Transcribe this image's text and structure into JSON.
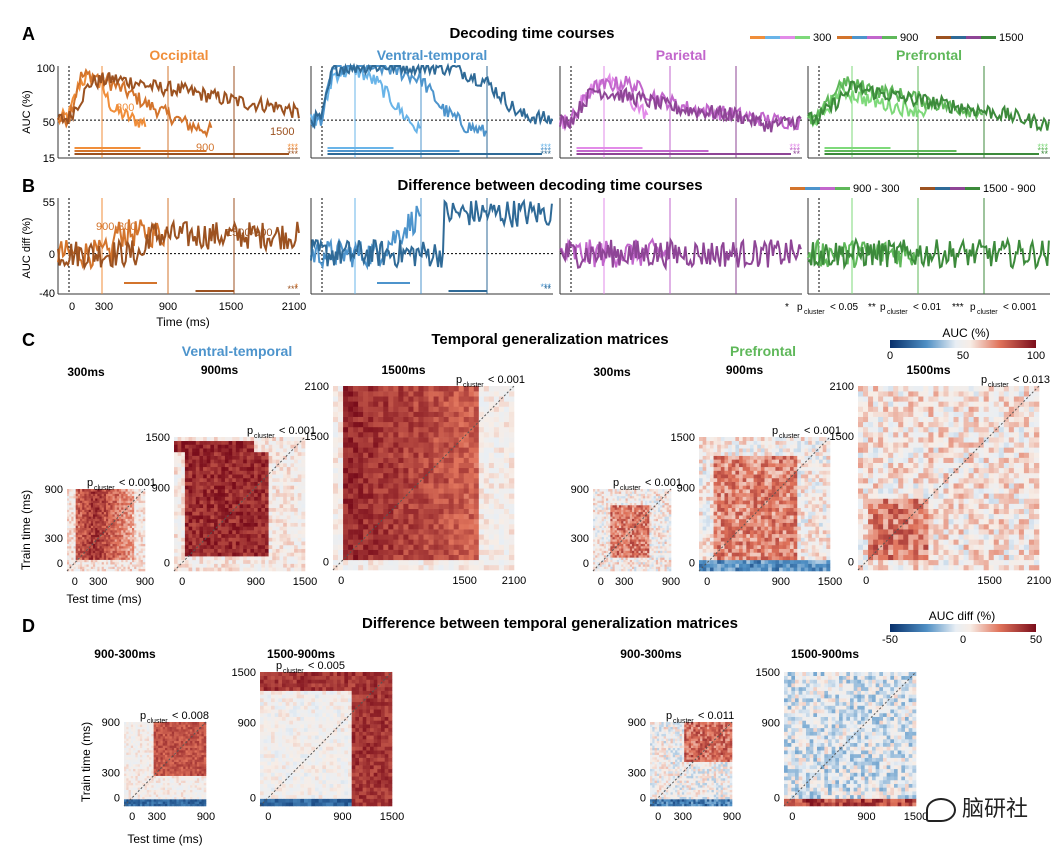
{
  "panels": {
    "A": {
      "letter": "A",
      "title": "Decoding time courses",
      "ylabel": "AUC (%)",
      "yticks": [
        "100",
        "50",
        "15"
      ],
      "legend": [
        {
          "label": "300",
          "colors": [
            "#f08e3a",
            "#69b4e8",
            "#e28be8",
            "#7ed97a"
          ]
        },
        {
          "label": "900",
          "colors": [
            "#d3742c",
            "#4d94cc",
            "#c266cc",
            "#5fb85a"
          ]
        },
        {
          "label": "1500",
          "colors": [
            "#9c5220",
            "#2f6a97",
            "#8e4596",
            "#3c8a3b"
          ]
        }
      ]
    },
    "B": {
      "letter": "B",
      "title": "Difference between decoding time courses",
      "ylabel": "AUC diff (%)",
      "yticks": [
        "55",
        "0",
        "-40"
      ],
      "xticks": [
        "0",
        "300",
        "900",
        "1500",
        "2100"
      ],
      "xlabel": "Time (ms)",
      "legend": [
        {
          "label": "900 - 300",
          "colors": [
            "#d3742c",
            "#4d94cc",
            "#c266cc",
            "#5fb85a"
          ]
        },
        {
          "label": "1500 - 900",
          "colors": [
            "#9c5220",
            "#2f6a97",
            "#8e4596",
            "#3c8a3b"
          ]
        }
      ],
      "sig_legend": {
        "s1": "*",
        "l1": "p",
        "sub": "cluster",
        "t1": "< 0.05",
        "s2": "**",
        "t2": "< 0.01",
        "s3": "***",
        "t3": "< 0.001"
      },
      "annot_9": "900-300",
      "annot_15": "1500-900"
    },
    "C": {
      "letter": "C",
      "title": "Temporal generalization matrices",
      "cbar_label": "AUC (%)",
      "cbar_ticks": [
        "0",
        "50",
        "100"
      ],
      "groups": [
        {
          "name": "Ventral-temporal",
          "color": "#4d94cc"
        },
        {
          "name": "Prefrontal",
          "color": "#5fb85a"
        }
      ],
      "matrix_titles": [
        "300ms",
        "900ms",
        "1500ms",
        "300ms",
        "900ms",
        "1500ms"
      ],
      "pvals": [
        "< 0.001",
        "< 0.001",
        "< 0.001",
        "< 0.001",
        "< 0.001",
        "< 0.013"
      ],
      "ylabel": "Train time (ms)",
      "xlabel": "Test time (ms)"
    },
    "D": {
      "letter": "D",
      "title": "Difference between temporal generalization matrices",
      "cbar_label": "AUC diff (%)",
      "cbar_ticks": [
        "-50",
        "0",
        "50"
      ],
      "matrix_titles": [
        "900-300ms",
        "1500-900ms",
        "900-300ms",
        "1500-900ms"
      ],
      "pvals": [
        "< 0.008",
        "< 0.005",
        "< 0.011"
      ],
      "ylabel": "Train time (ms)",
      "xlabel": "Test time (ms)"
    }
  },
  "regions": [
    {
      "name": "Occipital",
      "color": "#f08e3a",
      "label_300": "300",
      "label_900": "900",
      "label_1500": "1500",
      "stars": [
        "***",
        "***",
        "***"
      ],
      "bstars": [
        "*",
        "***"
      ]
    },
    {
      "name": "Ventral-temporal",
      "color": "#4d94cc",
      "stars": [
        "***",
        "***",
        "***"
      ],
      "bstars": [
        "***",
        "**"
      ]
    },
    {
      "name": "Parietal",
      "color": "#c266cc",
      "stars": [
        "***",
        "***",
        "**"
      ]
    },
    {
      "name": "Prefrontal",
      "color": "#5fb85a",
      "stars": [
        "***",
        "***",
        "**"
      ]
    }
  ],
  "p_letter": "p",
  "p_sub": "cluster",
  "watermark": "脑研社",
  "chart_data": [
    {
      "type": "line",
      "title": "Occipital",
      "panel": "A",
      "x_unit": "ms",
      "xlim": [
        -100,
        2100
      ],
      "ylim": [
        15,
        100
      ],
      "ylabel": "AUC (%)",
      "series": [
        {
          "name": "300",
          "x": [
            -100,
            0,
            100,
            200,
            300,
            400,
            500,
            600,
            700
          ],
          "y": [
            50,
            55,
            85,
            90,
            80,
            60,
            55,
            50,
            47
          ]
        },
        {
          "name": "900",
          "x": [
            -100,
            0,
            100,
            200,
            300,
            500,
            700,
            900,
            1100,
            1300
          ],
          "y": [
            50,
            52,
            90,
            92,
            88,
            78,
            65,
            55,
            45,
            40
          ]
        },
        {
          "name": "1500",
          "x": [
            -100,
            0,
            200,
            400,
            600,
            800,
            1000,
            1200,
            1400,
            1600,
            1800,
            2000,
            2100
          ],
          "y": [
            50,
            52,
            85,
            88,
            85,
            80,
            78,
            74,
            70,
            66,
            64,
            60,
            55
          ]
        }
      ]
    },
    {
      "type": "line",
      "title": "Ventral-temporal",
      "panel": "A",
      "x_unit": "ms",
      "xlim": [
        -100,
        2100
      ],
      "ylim": [
        15,
        100
      ],
      "ylabel": "AUC (%)",
      "series": [
        {
          "name": "300",
          "x": [
            -100,
            0,
            100,
            300,
            500,
            700,
            900
          ],
          "y": [
            50,
            52,
            92,
            97,
            85,
            60,
            38
          ]
        },
        {
          "name": "900",
          "x": [
            -100,
            0,
            100,
            300,
            600,
            900,
            1100,
            1300,
            1500
          ],
          "y": [
            50,
            52,
            98,
            100,
            98,
            88,
            60,
            45,
            38
          ]
        },
        {
          "name": "1500",
          "x": [
            -100,
            0,
            100,
            400,
            800,
            1200,
            1500,
            1800,
            2100
          ],
          "y": [
            50,
            52,
            98,
            100,
            100,
            98,
            85,
            55,
            50
          ]
        }
      ]
    },
    {
      "type": "line",
      "title": "Parietal",
      "panel": "A",
      "x_unit": "ms",
      "xlim": [
        -100,
        2100
      ],
      "ylim": [
        15,
        100
      ],
      "ylabel": "AUC (%)",
      "series": [
        {
          "name": "300",
          "x": [
            -100,
            0,
            150,
            300,
            500,
            700
          ],
          "y": [
            48,
            50,
            75,
            90,
            70,
            55
          ]
        },
        {
          "name": "900",
          "x": [
            -100,
            0,
            200,
            500,
            800,
            1100,
            1500,
            1800,
            2100
          ],
          "y": [
            48,
            50,
            80,
            85,
            70,
            60,
            55,
            50,
            48
          ]
        },
        {
          "name": "1500",
          "x": [
            -100,
            0,
            200,
            600,
            1000,
            1500,
            1800,
            2100
          ],
          "y": [
            48,
            50,
            78,
            70,
            60,
            55,
            45,
            50
          ]
        }
      ]
    },
    {
      "type": "line",
      "title": "Prefrontal",
      "panel": "A",
      "x_unit": "ms",
      "xlim": [
        -100,
        2100
      ],
      "ylim": [
        15,
        100
      ],
      "ylabel": "AUC (%)",
      "series": [
        {
          "name": "300",
          "x": [
            -100,
            0,
            200,
            400,
            700,
            1000
          ],
          "y": [
            50,
            52,
            78,
            70,
            62,
            58
          ]
        },
        {
          "name": "900",
          "x": [
            -100,
            0,
            200,
            500,
            900,
            1200,
            1500
          ],
          "y": [
            50,
            52,
            85,
            78,
            70,
            62,
            58
          ]
        },
        {
          "name": "1500",
          "x": [
            -100,
            0,
            300,
            800,
            1300,
            1700,
            2100
          ],
          "y": [
            50,
            52,
            80,
            70,
            62,
            55,
            45
          ]
        }
      ]
    }
  ]
}
